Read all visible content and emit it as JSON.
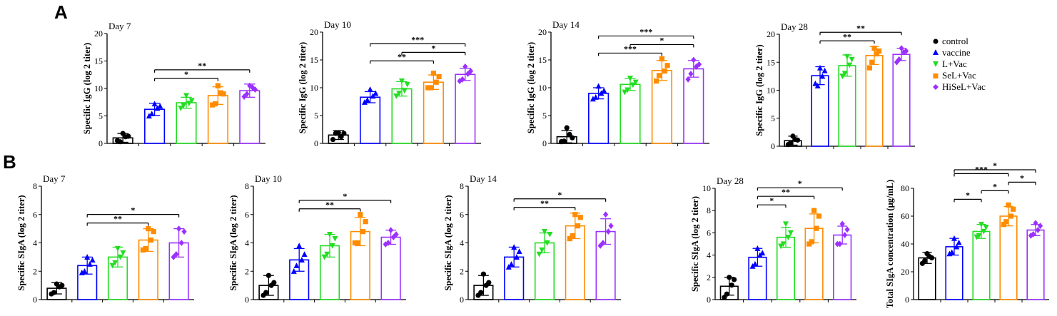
{
  "panels": {
    "a": "A",
    "b": "B"
  },
  "legend": [
    {
      "label": "control",
      "color": "#000000",
      "marker": "circle"
    },
    {
      "label": "vaccine",
      "color": "#0000ff",
      "marker": "triangle-up"
    },
    {
      "label": "L+Vac",
      "color": "#22dd22",
      "marker": "triangle-down"
    },
    {
      "label": "SeL+Vac",
      "color": "#ff8c00",
      "marker": "square"
    },
    {
      "label": "HiSeL+Vac",
      "color": "#9b30ff",
      "marker": "diamond"
    }
  ],
  "chart_data": [
    {
      "type": "bar",
      "panel": "A",
      "title": "Day 7",
      "ylabel": "Specific IgG (log 2 titer)",
      "ylim": [
        0,
        20
      ],
      "yticks": [
        0,
        5,
        10,
        15,
        20
      ],
      "categories": [
        "control",
        "vaccine",
        "L+Vac",
        "SeL+Vac",
        "HiSeL+Vac"
      ],
      "values": [
        1.0,
        6.2,
        7.4,
        8.7,
        9.6
      ],
      "sd": [
        0.8,
        1.1,
        1.0,
        1.6,
        1.2
      ],
      "points": [
        [
          1.8,
          0.5,
          1.2,
          0.3,
          1.3
        ],
        [
          7.2,
          5.0,
          6.4,
          5.4,
          6.8
        ],
        [
          8.7,
          6.4,
          7.3,
          6.9,
          7.8
        ],
        [
          10.5,
          7.0,
          9.2,
          7.2,
          9.0
        ],
        [
          10.5,
          8.5,
          10.2,
          9.0,
          9.8
        ]
      ],
      "significance": [
        {
          "from": 1,
          "to": 3,
          "label": "*"
        },
        {
          "from": 1,
          "to": 4,
          "label": "**"
        }
      ]
    },
    {
      "type": "bar",
      "panel": "A",
      "title": "Day 10",
      "ylabel": "Specific IgG (log 2 titer)",
      "ylim": [
        0,
        20
      ],
      "yticks": [
        0,
        5,
        10,
        15,
        20
      ],
      "categories": [
        "control",
        "vaccine",
        "L+Vac",
        "SeL+Vac",
        "HiSeL+Vac"
      ],
      "values": [
        1.5,
        8.3,
        9.8,
        11.0,
        12.4
      ],
      "sd": [
        0.8,
        1.0,
        1.3,
        1.3,
        1.1
      ],
      "points": [
        [
          1.9,
          0.7,
          1.2,
          1.8,
          1.8
        ],
        [
          9.7,
          7.4,
          8.5,
          7.8,
          9.0
        ],
        [
          11.2,
          8.5,
          9.5,
          9.0,
          10.6
        ],
        [
          12.6,
          10.0,
          11.0,
          10.0,
          12.0
        ],
        [
          13.8,
          11.2,
          12.5,
          11.5,
          13.0
        ]
      ],
      "significance": [
        {
          "from": 1,
          "to": 3,
          "label": "**"
        },
        {
          "from": 1,
          "to": 4,
          "label": "***"
        },
        {
          "from": 2,
          "to": 4,
          "label": "*"
        }
      ]
    },
    {
      "type": "bar",
      "panel": "A",
      "title": "Day 14",
      "ylabel": "Specific IgG (log 2 titer)",
      "ylim": [
        0,
        20
      ],
      "yticks": [
        0,
        5,
        10,
        15,
        20
      ],
      "categories": [
        "control",
        "vaccine",
        "L+Vac",
        "SeL+Vac",
        "HiSeL+Vac"
      ],
      "values": [
        1.2,
        9.0,
        10.6,
        13.1,
        13.4
      ],
      "sd": [
        1.1,
        1.0,
        1.1,
        1.8,
        1.5
      ],
      "points": [
        [
          2.8,
          0.3,
          1.6,
          0.4,
          1.0
        ],
        [
          10.3,
          8.0,
          9.0,
          8.3,
          9.5
        ],
        [
          11.7,
          9.2,
          10.5,
          9.6,
          11.0
        ],
        [
          15.2,
          11.2,
          13.0,
          12.2,
          14.0
        ],
        [
          15.0,
          11.5,
          13.8,
          12.5,
          14.2
        ]
      ],
      "significance": [
        {
          "from": 1,
          "to": 3,
          "label": "***"
        },
        {
          "from": 1,
          "to": 4,
          "label": "***"
        },
        {
          "from": 2,
          "to": 4,
          "label": "*"
        }
      ]
    },
    {
      "type": "bar",
      "panel": "A",
      "title": "Day 28",
      "ylabel": "Specific IgG (log 2 titer)",
      "ylim": [
        0,
        20
      ],
      "yticks": [
        0,
        5,
        10,
        15,
        20
      ],
      "categories": [
        "control",
        "vaccine",
        "L+Vac",
        "SeL+Vac",
        "HiSeL+Vac"
      ],
      "values": [
        1.0,
        12.6,
        14.4,
        16.2,
        16.4
      ],
      "sd": [
        0.8,
        1.6,
        1.9,
        1.6,
        1.1
      ],
      "points": [
        [
          1.8,
          0.3,
          1.2,
          0.6,
          1.1
        ],
        [
          14.0,
          11.2,
          12.5,
          10.8,
          13.5
        ],
        [
          16.0,
          12.5,
          14.5,
          13.0,
          15.5
        ],
        [
          17.5,
          14.0,
          16.5,
          15.0,
          17.0
        ],
        [
          17.5,
          15.0,
          16.8,
          15.5,
          17.0
        ]
      ],
      "significance": [
        {
          "from": 1,
          "to": 3,
          "label": "**"
        },
        {
          "from": 1,
          "to": 4,
          "label": "**"
        }
      ]
    },
    {
      "type": "bar",
      "panel": "B",
      "title": "Day 7",
      "ylabel": "Specific SIgA (log 2 titer)",
      "ylim": [
        0,
        8
      ],
      "yticks": [
        0,
        2,
        4,
        6,
        8
      ],
      "categories": [
        "control",
        "vaccine",
        "L+Vac",
        "SeL+Vac",
        "HiSeL+Vac"
      ],
      "values": [
        0.8,
        2.4,
        3.0,
        4.2,
        4.0
      ],
      "sd": [
        0.4,
        0.6,
        0.7,
        0.8,
        1.0
      ],
      "points": [
        [
          1.1,
          0.4,
          0.9,
          0.5,
          1.0
        ],
        [
          3.0,
          1.9,
          2.5,
          2.0,
          2.8
        ],
        [
          3.6,
          2.4,
          3.0,
          2.6,
          3.3
        ],
        [
          5.0,
          3.5,
          4.2,
          3.6,
          4.8
        ],
        [
          5.0,
          3.0,
          4.0,
          3.2,
          4.8
        ]
      ],
      "significance": [
        {
          "from": 1,
          "to": 3,
          "label": "**"
        },
        {
          "from": 1,
          "to": 4,
          "label": "*"
        }
      ]
    },
    {
      "type": "bar",
      "panel": "B",
      "title": "Day 10",
      "ylabel": "Specific SIgA (log 2 titer)",
      "ylim": [
        0,
        8
      ],
      "yticks": [
        0,
        2,
        4,
        6,
        8
      ],
      "categories": [
        "control",
        "vaccine",
        "L+Vac",
        "SeL+Vac",
        "HiSeL+Vac"
      ],
      "values": [
        1.0,
        2.8,
        3.8,
        4.8,
        4.4
      ],
      "sd": [
        0.7,
        0.8,
        0.8,
        1.0,
        0.5
      ],
      "points": [
        [
          1.7,
          0.3,
          1.0,
          0.5,
          1.2
        ],
        [
          3.8,
          2.0,
          2.8,
          2.4,
          3.2
        ],
        [
          4.6,
          3.0,
          3.8,
          3.2,
          4.3
        ],
        [
          6.0,
          4.0,
          4.8,
          4.0,
          5.5
        ],
        [
          4.9,
          3.9,
          4.4,
          4.0,
          4.6
        ]
      ],
      "significance": [
        {
          "from": 1,
          "to": 3,
          "label": "**"
        },
        {
          "from": 1,
          "to": 4,
          "label": "*"
        }
      ]
    },
    {
      "type": "bar",
      "panel": "B",
      "title": "Day 14",
      "ylabel": "Specific SIgA (log 2 titer)",
      "ylim": [
        0,
        8
      ],
      "yticks": [
        0,
        2,
        4,
        6,
        8
      ],
      "categories": [
        "control",
        "vaccine",
        "L+Vac",
        "SeL+Vac",
        "HiSeL+Vac"
      ],
      "values": [
        1.0,
        3.0,
        4.0,
        5.2,
        4.8
      ],
      "sd": [
        0.7,
        0.7,
        0.7,
        0.9,
        0.9
      ],
      "points": [
        [
          1.8,
          0.3,
          1.0,
          0.5,
          1.2
        ],
        [
          3.7,
          2.3,
          3.0,
          2.5,
          3.4
        ],
        [
          4.8,
          3.2,
          4.0,
          3.5,
          4.6
        ],
        [
          6.0,
          4.3,
          5.2,
          4.5,
          5.8
        ],
        [
          6.0,
          3.8,
          4.8,
          4.0,
          5.2
        ]
      ],
      "significance": [
        {
          "from": 1,
          "to": 3,
          "label": "**"
        },
        {
          "from": 1,
          "to": 4,
          "label": "*"
        }
      ]
    },
    {
      "type": "bar",
      "panel": "B",
      "title": "Day 28",
      "ylabel": "Specific SIgA (log 2 titer)",
      "ylim": [
        0,
        10
      ],
      "yticks": [
        0,
        2,
        4,
        6,
        8,
        10
      ],
      "categories": [
        "control",
        "vaccine",
        "L+Vac",
        "SeL+Vac",
        "HiSeL+Vac"
      ],
      "values": [
        1.2,
        3.8,
        5.6,
        6.4,
        5.8
      ],
      "sd": [
        0.8,
        0.8,
        0.9,
        1.3,
        0.8
      ],
      "points": [
        [
          2.0,
          0.2,
          1.3,
          0.5,
          1.8
        ],
        [
          4.6,
          3.0,
          4.0,
          3.2,
          4.2
        ],
        [
          6.8,
          4.8,
          5.6,
          5.0,
          6.0
        ],
        [
          8.0,
          5.0,
          6.4,
          5.2,
          7.5
        ],
        [
          6.8,
          5.0,
          5.8,
          5.0,
          6.3
        ]
      ],
      "significance": [
        {
          "from": 1,
          "to": 2,
          "label": "*"
        },
        {
          "from": 1,
          "to": 3,
          "label": "**"
        },
        {
          "from": 1,
          "to": 4,
          "label": "*"
        }
      ]
    },
    {
      "type": "bar",
      "panel": "B",
      "title": "",
      "ylabel": "Total SIgA concentration (μg/mL)",
      "ylim": [
        0,
        80
      ],
      "yticks": [
        0,
        20,
        40,
        60,
        80
      ],
      "categories": [
        "control",
        "vaccine",
        "L+Vac",
        "SeL+Vac",
        "HiSeL+Vac"
      ],
      "values": [
        30,
        38,
        49,
        60,
        50
      ],
      "sd": [
        4,
        6,
        5,
        7,
        4
      ],
      "points": [
        [
          33,
          26,
          31,
          28,
          30
        ],
        [
          44,
          33,
          38,
          34,
          41
        ],
        [
          54,
          45,
          49,
          46,
          52
        ],
        [
          68,
          54,
          60,
          56,
          65
        ],
        [
          55,
          46,
          50,
          47,
          53
        ]
      ],
      "significance": [
        {
          "from": 1,
          "to": 2,
          "label": "*"
        },
        {
          "from": 1,
          "to": 3,
          "label": "***"
        },
        {
          "from": 1,
          "to": 4,
          "label": "*"
        },
        {
          "from": 2,
          "to": 3,
          "label": "*"
        },
        {
          "from": 3,
          "to": 4,
          "label": "*"
        }
      ]
    }
  ]
}
